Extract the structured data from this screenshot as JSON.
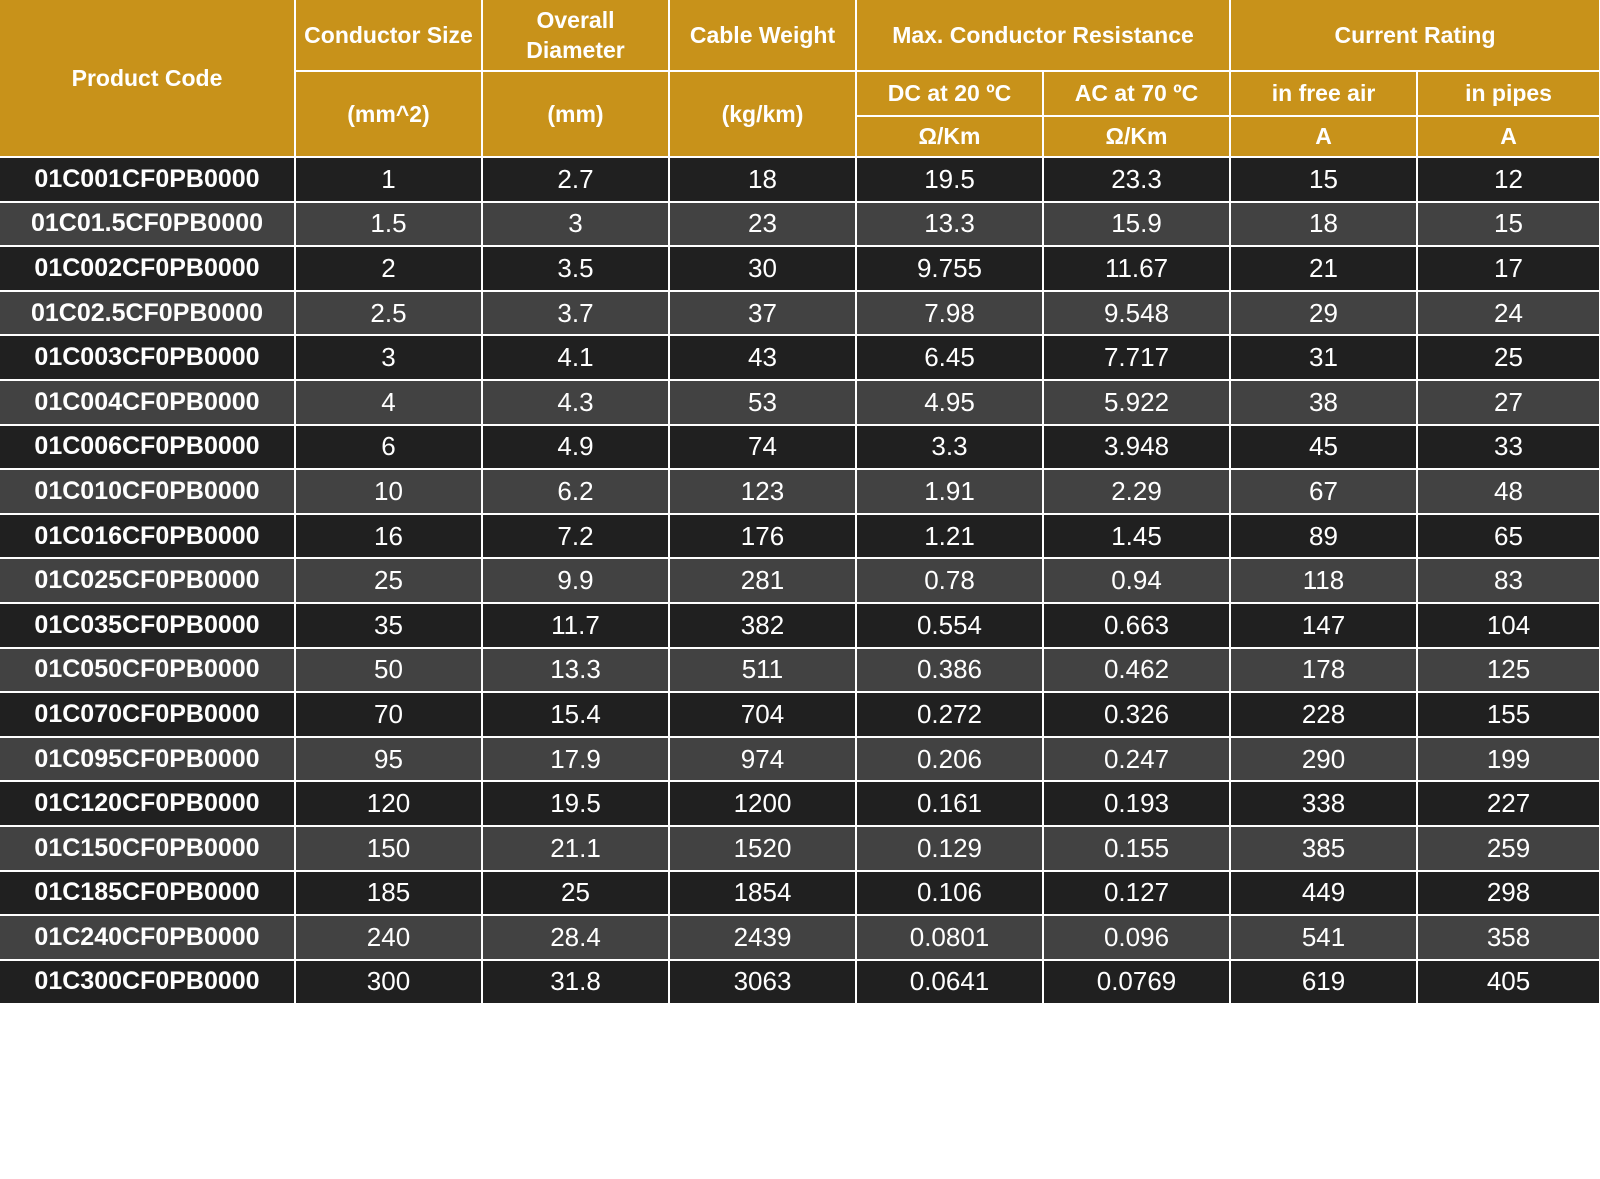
{
  "header": {
    "product_code": "Product Code",
    "conductor_size": {
      "label": "Conductor Size",
      "unit": "(mm^2)"
    },
    "overall_diameter": {
      "label": "Overall Diameter",
      "unit": "(mm)"
    },
    "cable_weight": {
      "label": "Cable Weight",
      "unit": "(kg/km)"
    },
    "resistance": {
      "label": "Max. Conductor Resistance",
      "dc": {
        "label": "DC at 20 ºC",
        "unit": "Ω/Km"
      },
      "ac": {
        "label": "AC at 70 ºC",
        "unit": "Ω/Km"
      }
    },
    "current_rating": {
      "label": "Current Rating",
      "free_air": {
        "label": "in free air",
        "unit": "A"
      },
      "pipes": {
        "label": "in pipes",
        "unit": "A"
      }
    }
  },
  "table": {
    "rows": [
      [
        "01C001CF0PB0000",
        "1",
        "2.7",
        "18",
        "19.5",
        "23.3",
        "15",
        "12"
      ],
      [
        "01C01.5CF0PB0000",
        "1.5",
        "3",
        "23",
        "13.3",
        "15.9",
        "18",
        "15"
      ],
      [
        "01C002CF0PB0000",
        "2",
        "3.5",
        "30",
        "9.755",
        "11.67",
        "21",
        "17"
      ],
      [
        "01C02.5CF0PB0000",
        "2.5",
        "3.7",
        "37",
        "7.98",
        "9.548",
        "29",
        "24"
      ],
      [
        "01C003CF0PB0000",
        "3",
        "4.1",
        "43",
        "6.45",
        "7.717",
        "31",
        "25"
      ],
      [
        "01C004CF0PB0000",
        "4",
        "4.3",
        "53",
        "4.95",
        "5.922",
        "38",
        "27"
      ],
      [
        "01C006CF0PB0000",
        "6",
        "4.9",
        "74",
        "3.3",
        "3.948",
        "45",
        "33"
      ],
      [
        "01C010CF0PB0000",
        "10",
        "6.2",
        "123",
        "1.91",
        "2.29",
        "67",
        "48"
      ],
      [
        "01C016CF0PB0000",
        "16",
        "7.2",
        "176",
        "1.21",
        "1.45",
        "89",
        "65"
      ],
      [
        "01C025CF0PB0000",
        "25",
        "9.9",
        "281",
        "0.78",
        "0.94",
        "118",
        "83"
      ],
      [
        "01C035CF0PB0000",
        "35",
        "11.7",
        "382",
        "0.554",
        "0.663",
        "147",
        "104"
      ],
      [
        "01C050CF0PB0000",
        "50",
        "13.3",
        "511",
        "0.386",
        "0.462",
        "178",
        "125"
      ],
      [
        "01C070CF0PB0000",
        "70",
        "15.4",
        "704",
        "0.272",
        "0.326",
        "228",
        "155"
      ],
      [
        "01C095CF0PB0000",
        "95",
        "17.9",
        "974",
        "0.206",
        "0.247",
        "290",
        "199"
      ],
      [
        "01C120CF0PB0000",
        "120",
        "19.5",
        "1200",
        "0.161",
        "0.193",
        "338",
        "227"
      ],
      [
        "01C150CF0PB0000",
        "150",
        "21.1",
        "1520",
        "0.129",
        "0.155",
        "385",
        "259"
      ],
      [
        "01C185CF0PB0000",
        "185",
        "25",
        "1854",
        "0.106",
        "0.127",
        "449",
        "298"
      ],
      [
        "01C240CF0PB0000",
        "240",
        "28.4",
        "2439",
        "0.0801",
        "0.096",
        "541",
        "358"
      ],
      [
        "01C300CF0PB0000",
        "300",
        "31.8",
        "3063",
        "0.0641",
        "0.0769",
        "619",
        "405"
      ]
    ]
  }
}
